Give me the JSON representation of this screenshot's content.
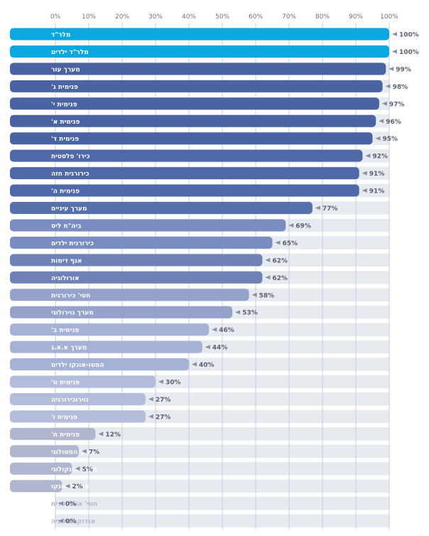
{
  "chart_data": {
    "type": "bar",
    "orientation": "horizontal",
    "xlim": [
      0,
      100
    ],
    "x_ticks": [
      "0%",
      "10%",
      "20%",
      "30%",
      "40%",
      "50%",
      "60%",
      "70%",
      "80%",
      "90%",
      "100%"
    ],
    "grid": true,
    "categories": [
      "מלר\"ד",
      "מלר\"ד ילדים",
      "מערך עור",
      "פנימית ג'",
      "פנימית י'",
      "פנימית א'",
      "פנימית ד'",
      "כירו' פלסטית",
      "כירורגית חזה",
      "פנימית ה'",
      "מערך עיניים",
      "ביה\"ח ליס",
      "כירורגית ילדים",
      "אגף דימות",
      "אורולוגיה",
      "חטי' כירורגית",
      "מערך נוירולוגי",
      "פנימית ב'",
      "מערך א.א.ג",
      "המטו-אונקו ילדים",
      "פנימית ט'",
      "נוירוכירורגיה",
      "פנימית ו'",
      "פנימית ח'",
      "מערך המטולוגי",
      "מערך אונקולוגי",
      "אורתו' אונקו",
      "חטי' אורתופדית",
      "אנדוקרינולוגיה"
    ],
    "values": [
      100,
      100,
      99,
      98,
      97,
      96,
      95,
      92,
      91,
      91,
      77,
      69,
      65,
      62,
      62,
      58,
      53,
      46,
      44,
      40,
      30,
      27,
      27,
      12,
      7,
      5,
      2,
      0,
      0
    ],
    "value_labels": [
      "100%",
      "100%",
      "99%",
      "98%",
      "97%",
      "96%",
      "95%",
      "92%",
      "91%",
      "91%",
      "77%",
      "69%",
      "65%",
      "62%",
      "62%",
      "58%",
      "53%",
      "46%",
      "44%",
      "40%",
      "30%",
      "27%",
      "27%",
      "12%",
      "7%",
      "5%",
      "2%",
      "0%",
      "0%"
    ],
    "colors": [
      "#0aa7e0",
      "#0aa7e0",
      "#4a64a3",
      "#4a64a3",
      "#4a64a3",
      "#4a64a3",
      "#4a64a3",
      "#4f68a7",
      "#4f68a7",
      "#4f68a7",
      "#5570ab",
      "#7a8dc2",
      "#7a8dc2",
      "#6f82b8",
      "#6f82b8",
      "#95a2cc",
      "#95a2cc",
      "#a6b1d6",
      "#a6b1d6",
      "#a6b1d6",
      "#b3bcdb",
      "#b3bcdb",
      "#b3bcdb",
      "#b0b6cf",
      "#b0b6cf",
      "#b0b6cf",
      "#b0b6cf",
      "#b0b6cf",
      "#b0b6cf"
    ],
    "row_band_color": "#e6ebf0",
    "grid_color": "#c9ced6",
    "value_label_color": "#5a6170"
  }
}
